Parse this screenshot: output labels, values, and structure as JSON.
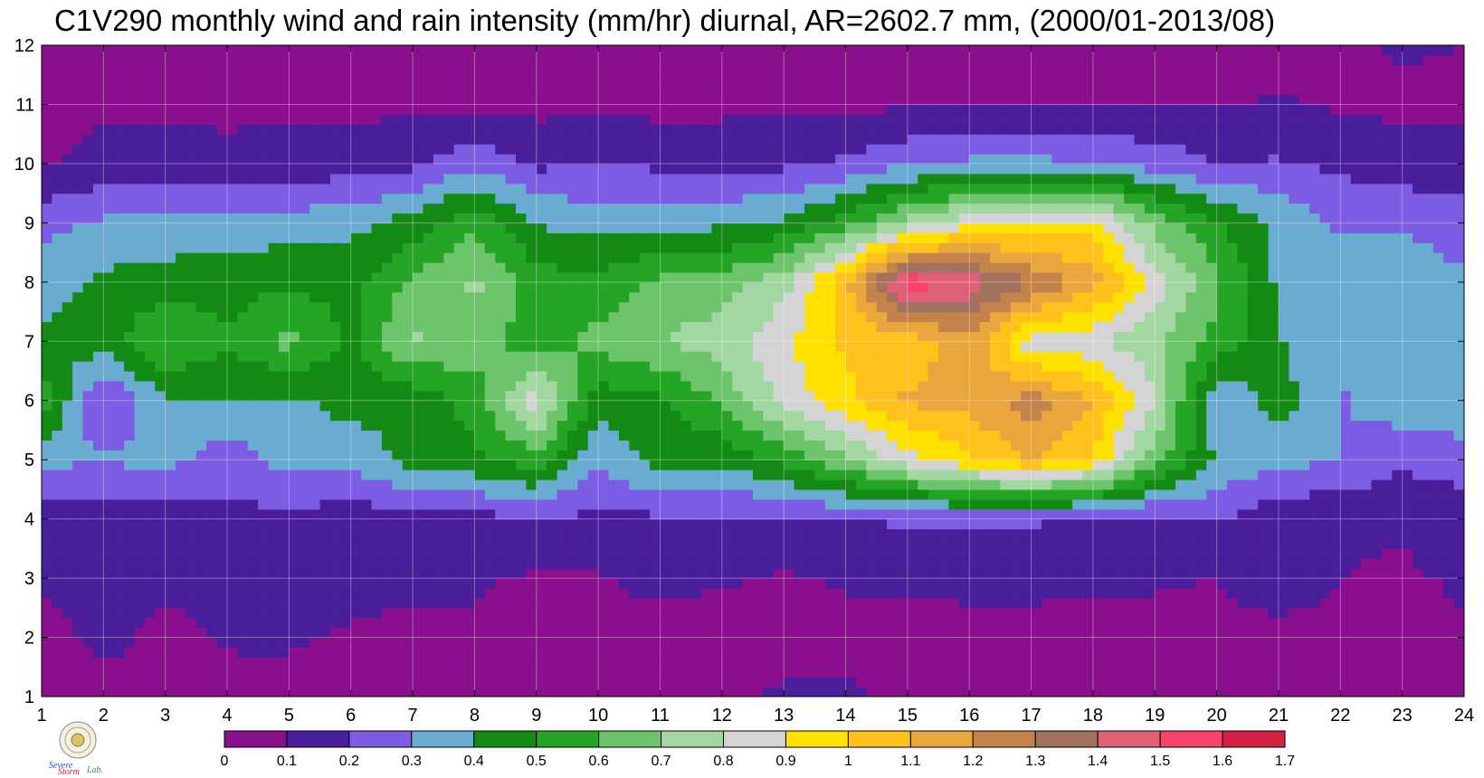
{
  "chart_data": {
    "type": "heatmap",
    "title": "C1V290 monthly wind and rain intensity (mm/hr) diurnal, AR=2602.7 mm, (2000/01-2013/08)",
    "xlabel": "",
    "ylabel": "",
    "x": [
      1,
      2,
      3,
      4,
      5,
      6,
      7,
      8,
      9,
      10,
      11,
      12,
      13,
      14,
      15,
      16,
      17,
      18,
      19,
      20,
      21,
      22,
      23,
      24
    ],
    "y": [
      1,
      2,
      3,
      4,
      5,
      6,
      7,
      8,
      9,
      10,
      11,
      12
    ],
    "xlim": [
      1,
      24
    ],
    "ylim": [
      1,
      12
    ],
    "x_ticks": [
      "1",
      "2",
      "3",
      "4",
      "5",
      "6",
      "7",
      "8",
      "9",
      "10",
      "11",
      "12",
      "13",
      "14",
      "15",
      "16",
      "17",
      "18",
      "19",
      "20",
      "21",
      "22",
      "23",
      "24"
    ],
    "y_ticks": [
      "1",
      "2",
      "3",
      "4",
      "5",
      "6",
      "7",
      "8",
      "9",
      "10",
      "11",
      "12"
    ],
    "grid": true,
    "values": [
      [
        0.06,
        0.06,
        0.06,
        0.07,
        0.07,
        0.08,
        0.07,
        0.07,
        0.1,
        0.1,
        0.09,
        0.07,
        0.12,
        0.12,
        0.08,
        0.09,
        0.1,
        0.09,
        0.09,
        0.08,
        0.06,
        0.07,
        0.06,
        0.07
      ],
      [
        0.06,
        0.13,
        0.07,
        0.11,
        0.11,
        0.09,
        0.07,
        0.09,
        0.05,
        0.09,
        0.06,
        0.05,
        0.05,
        0.07,
        0.05,
        0.05,
        0.06,
        0.06,
        0.07,
        0.06,
        0.05,
        0.06,
        0.07,
        0.09
      ],
      [
        0.11,
        0.14,
        0.12,
        0.13,
        0.11,
        0.13,
        0.13,
        0.11,
        0.09,
        0.09,
        0.13,
        0.11,
        0.09,
        0.11,
        0.12,
        0.14,
        0.13,
        0.12,
        0.11,
        0.1,
        0.18,
        0.1,
        0.09,
        0.11
      ],
      [
        0.16,
        0.13,
        0.15,
        0.18,
        0.16,
        0.15,
        0.14,
        0.16,
        0.19,
        0.18,
        0.18,
        0.18,
        0.18,
        0.19,
        0.22,
        0.22,
        0.21,
        0.19,
        0.17,
        0.21,
        0.13,
        0.11,
        0.11,
        0.13
      ],
      [
        0.32,
        0.31,
        0.33,
        0.24,
        0.34,
        0.33,
        0.44,
        0.48,
        0.56,
        0.31,
        0.44,
        0.42,
        0.52,
        0.68,
        0.85,
        0.98,
        1.1,
        0.98,
        0.65,
        0.39,
        0.33,
        0.3,
        0.22,
        0.26
      ],
      [
        0.56,
        0.18,
        0.39,
        0.39,
        0.38,
        0.44,
        0.42,
        0.54,
        0.85,
        0.44,
        0.48,
        0.62,
        0.83,
        0.97,
        1.12,
        1.14,
        1.25,
        1.1,
        0.81,
        0.3,
        0.45,
        0.29,
        0.36,
        0.37
      ],
      [
        0.42,
        0.45,
        0.62,
        0.51,
        0.63,
        0.48,
        0.72,
        0.65,
        0.54,
        0.64,
        0.7,
        0.75,
        0.88,
        1.02,
        1.02,
        1.18,
        0.84,
        0.82,
        0.72,
        0.57,
        0.41,
        0.31,
        0.38,
        0.4
      ],
      [
        0.36,
        0.42,
        0.44,
        0.46,
        0.49,
        0.46,
        0.62,
        0.72,
        0.55,
        0.52,
        0.63,
        0.65,
        0.76,
        1.08,
        1.58,
        1.47,
        1.3,
        1.15,
        0.85,
        0.62,
        0.38,
        0.37,
        0.35,
        0.31
      ],
      [
        0.27,
        0.32,
        0.34,
        0.35,
        0.34,
        0.37,
        0.44,
        0.58,
        0.39,
        0.36,
        0.36,
        0.38,
        0.42,
        0.55,
        0.73,
        0.87,
        0.92,
        0.95,
        0.66,
        0.51,
        0.38,
        0.28,
        0.29,
        0.26
      ],
      [
        0.09,
        0.12,
        0.14,
        0.14,
        0.14,
        0.15,
        0.17,
        0.28,
        0.18,
        0.21,
        0.18,
        0.16,
        0.18,
        0.22,
        0.28,
        0.32,
        0.33,
        0.3,
        0.26,
        0.2,
        0.21,
        0.18,
        0.14,
        0.14
      ],
      [
        0.07,
        0.09,
        0.08,
        0.07,
        0.08,
        0.07,
        0.09,
        0.08,
        0.07,
        0.09,
        0.07,
        0.08,
        0.08,
        0.08,
        0.09,
        0.1,
        0.1,
        0.09,
        0.1,
        0.09,
        0.11,
        0.09,
        0.08,
        0.08
      ],
      [
        0.05,
        0.06,
        0.07,
        0.05,
        0.06,
        0.06,
        0.05,
        0.06,
        0.07,
        0.06,
        0.05,
        0.06,
        0.05,
        0.06,
        0.06,
        0.05,
        0.07,
        0.06,
        0.06,
        0.05,
        0.06,
        0.08,
        0.11,
        0.1
      ]
    ],
    "levels": [
      0,
      0.1,
      0.2,
      0.3,
      0.4,
      0.5,
      0.6,
      0.7,
      0.8,
      0.9,
      1,
      1.1,
      1.2,
      1.3,
      1.4,
      1.5,
      1.6,
      1.7
    ],
    "colorbar_labels": [
      "0",
      "0.1",
      "0.2",
      "0.3",
      "0.4",
      "0.5",
      "0.6",
      "0.7",
      "0.8",
      "0.9",
      "1",
      "1.1",
      "1.2",
      "1.3",
      "1.4",
      "1.5",
      "1.6",
      "1.7"
    ],
    "colors": [
      "#8a0f8c",
      "#4a1d9a",
      "#7b5ce3",
      "#6aacd1",
      "#138a14",
      "#25a425",
      "#6cc46b",
      "#a3d7a1",
      "#d4d4d4",
      "#ffe100",
      "#ffc11c",
      "#e8a63c",
      "#c4834a",
      "#a2725f",
      "#e0607a",
      "#f7426a",
      "#d62043"
    ],
    "contour_color": "#f2a72e",
    "legend_position": "bottom"
  },
  "logo": {
    "text_severe": "Severe",
    "text_storm": "Storm",
    "text_lab": "Lab."
  }
}
